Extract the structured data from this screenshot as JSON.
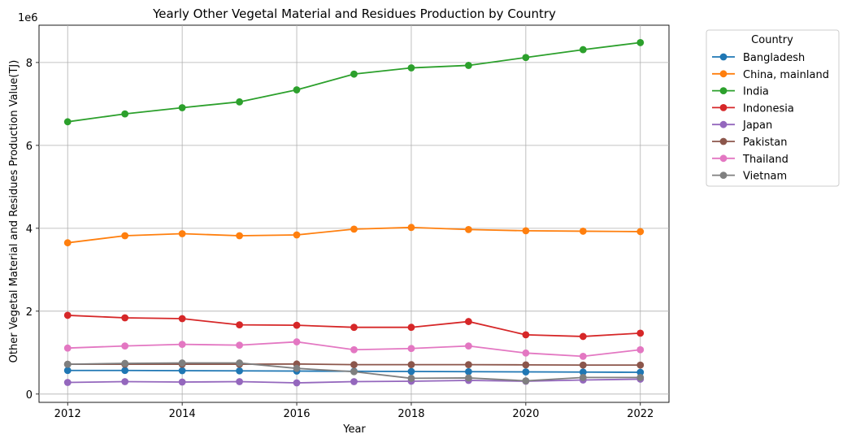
{
  "chart_data": {
    "type": "line",
    "title": "Yearly Other Vegetal Material and Residues Production by Country",
    "xlabel": "Year",
    "ylabel": "Other Vegetal Material and Residues Production Value(TJ)",
    "y_offset_label": "1e6",
    "x_ticks": [
      "2012",
      "2014",
      "2016",
      "2018",
      "2020",
      "2022"
    ],
    "y_ticks": [
      "0",
      "2",
      "4",
      "6",
      "8"
    ],
    "xlim": [
      2011.5,
      2022.5
    ],
    "ylim": [
      -200000,
      8900000
    ],
    "grid": true,
    "legend_title": "Country",
    "legend_position": "outside right, top",
    "x": [
      2012,
      2013,
      2014,
      2015,
      2016,
      2017,
      2018,
      2019,
      2020,
      2021,
      2022
    ],
    "series": [
      {
        "name": "Bangladesh",
        "color": "#1f77b4",
        "values": [
          570000,
          570000,
          565000,
          560000,
          555000,
          550000,
          545000,
          540000,
          535000,
          530000,
          525000
        ]
      },
      {
        "name": "China, mainland",
        "color": "#ff7f0e",
        "values": [
          3650000,
          3820000,
          3870000,
          3820000,
          3840000,
          3980000,
          4020000,
          3970000,
          3940000,
          3930000,
          3920000
        ]
      },
      {
        "name": "India",
        "color": "#2ca02c",
        "values": [
          6570000,
          6760000,
          6910000,
          7050000,
          7340000,
          7720000,
          7870000,
          7930000,
          8120000,
          8310000,
          8480000
        ]
      },
      {
        "name": "Indonesia",
        "color": "#d62728",
        "values": [
          1900000,
          1840000,
          1820000,
          1670000,
          1660000,
          1610000,
          1610000,
          1750000,
          1430000,
          1390000,
          1470000
        ]
      },
      {
        "name": "Japan",
        "color": "#9467bd",
        "values": [
          280000,
          300000,
          290000,
          300000,
          270000,
          300000,
          310000,
          330000,
          310000,
          340000,
          360000
        ]
      },
      {
        "name": "Pakistan",
        "color": "#8c564b",
        "values": [
          720000,
          720000,
          720000,
          720000,
          725000,
          710000,
          710000,
          710000,
          705000,
          700000,
          700000
        ]
      },
      {
        "name": "Thailand",
        "color": "#e377c2",
        "values": [
          1110000,
          1160000,
          1200000,
          1180000,
          1260000,
          1070000,
          1100000,
          1160000,
          990000,
          910000,
          1070000
        ]
      },
      {
        "name": "Vietnam",
        "color": "#7f7f7f",
        "values": [
          720000,
          740000,
          750000,
          750000,
          620000,
          540000,
          380000,
          390000,
          320000,
          400000,
          400000
        ]
      }
    ]
  }
}
